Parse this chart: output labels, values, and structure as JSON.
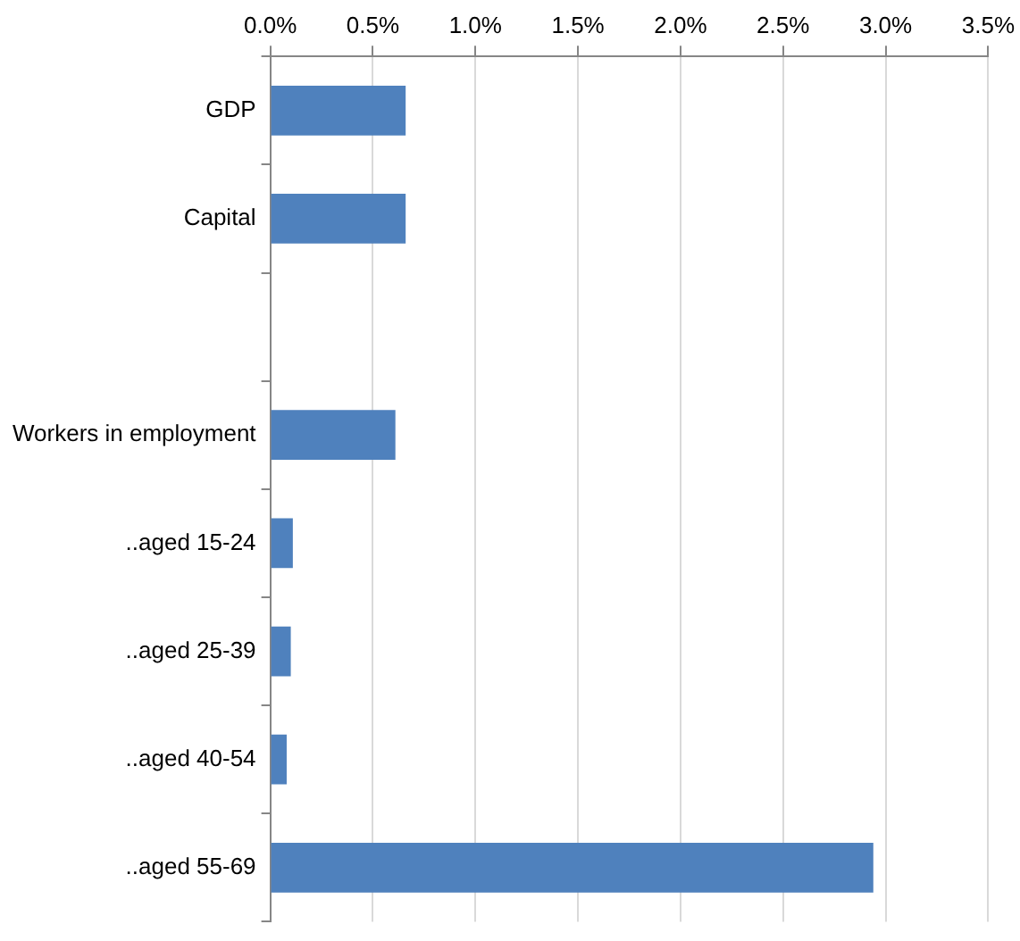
{
  "chart_data": {
    "type": "bar",
    "orientation": "horizontal",
    "categories": [
      "GDP",
      "Capital",
      null,
      "Workers in employment",
      "..aged 15-24",
      "..aged 25-39",
      "..aged 40-54",
      "..aged 55-69"
    ],
    "values": [
      0.66,
      0.66,
      null,
      0.61,
      0.11,
      0.1,
      0.08,
      2.94
    ],
    "color": "#4f81bd",
    "xlim": [
      0,
      3.5
    ],
    "xticks": [
      {
        "value": 0,
        "label": "0.0%"
      },
      {
        "value": 0.5,
        "label": "0.5%"
      },
      {
        "value": 1,
        "label": "1.0%"
      },
      {
        "value": 1.5,
        "label": "1.5%"
      },
      {
        "value": 2,
        "label": "2.0%"
      },
      {
        "value": 2.5,
        "label": "2.5%"
      },
      {
        "value": 3,
        "label": "3.0%"
      },
      {
        "value": 3.5,
        "label": "3.5%"
      }
    ],
    "grid": "x",
    "legend": false
  }
}
